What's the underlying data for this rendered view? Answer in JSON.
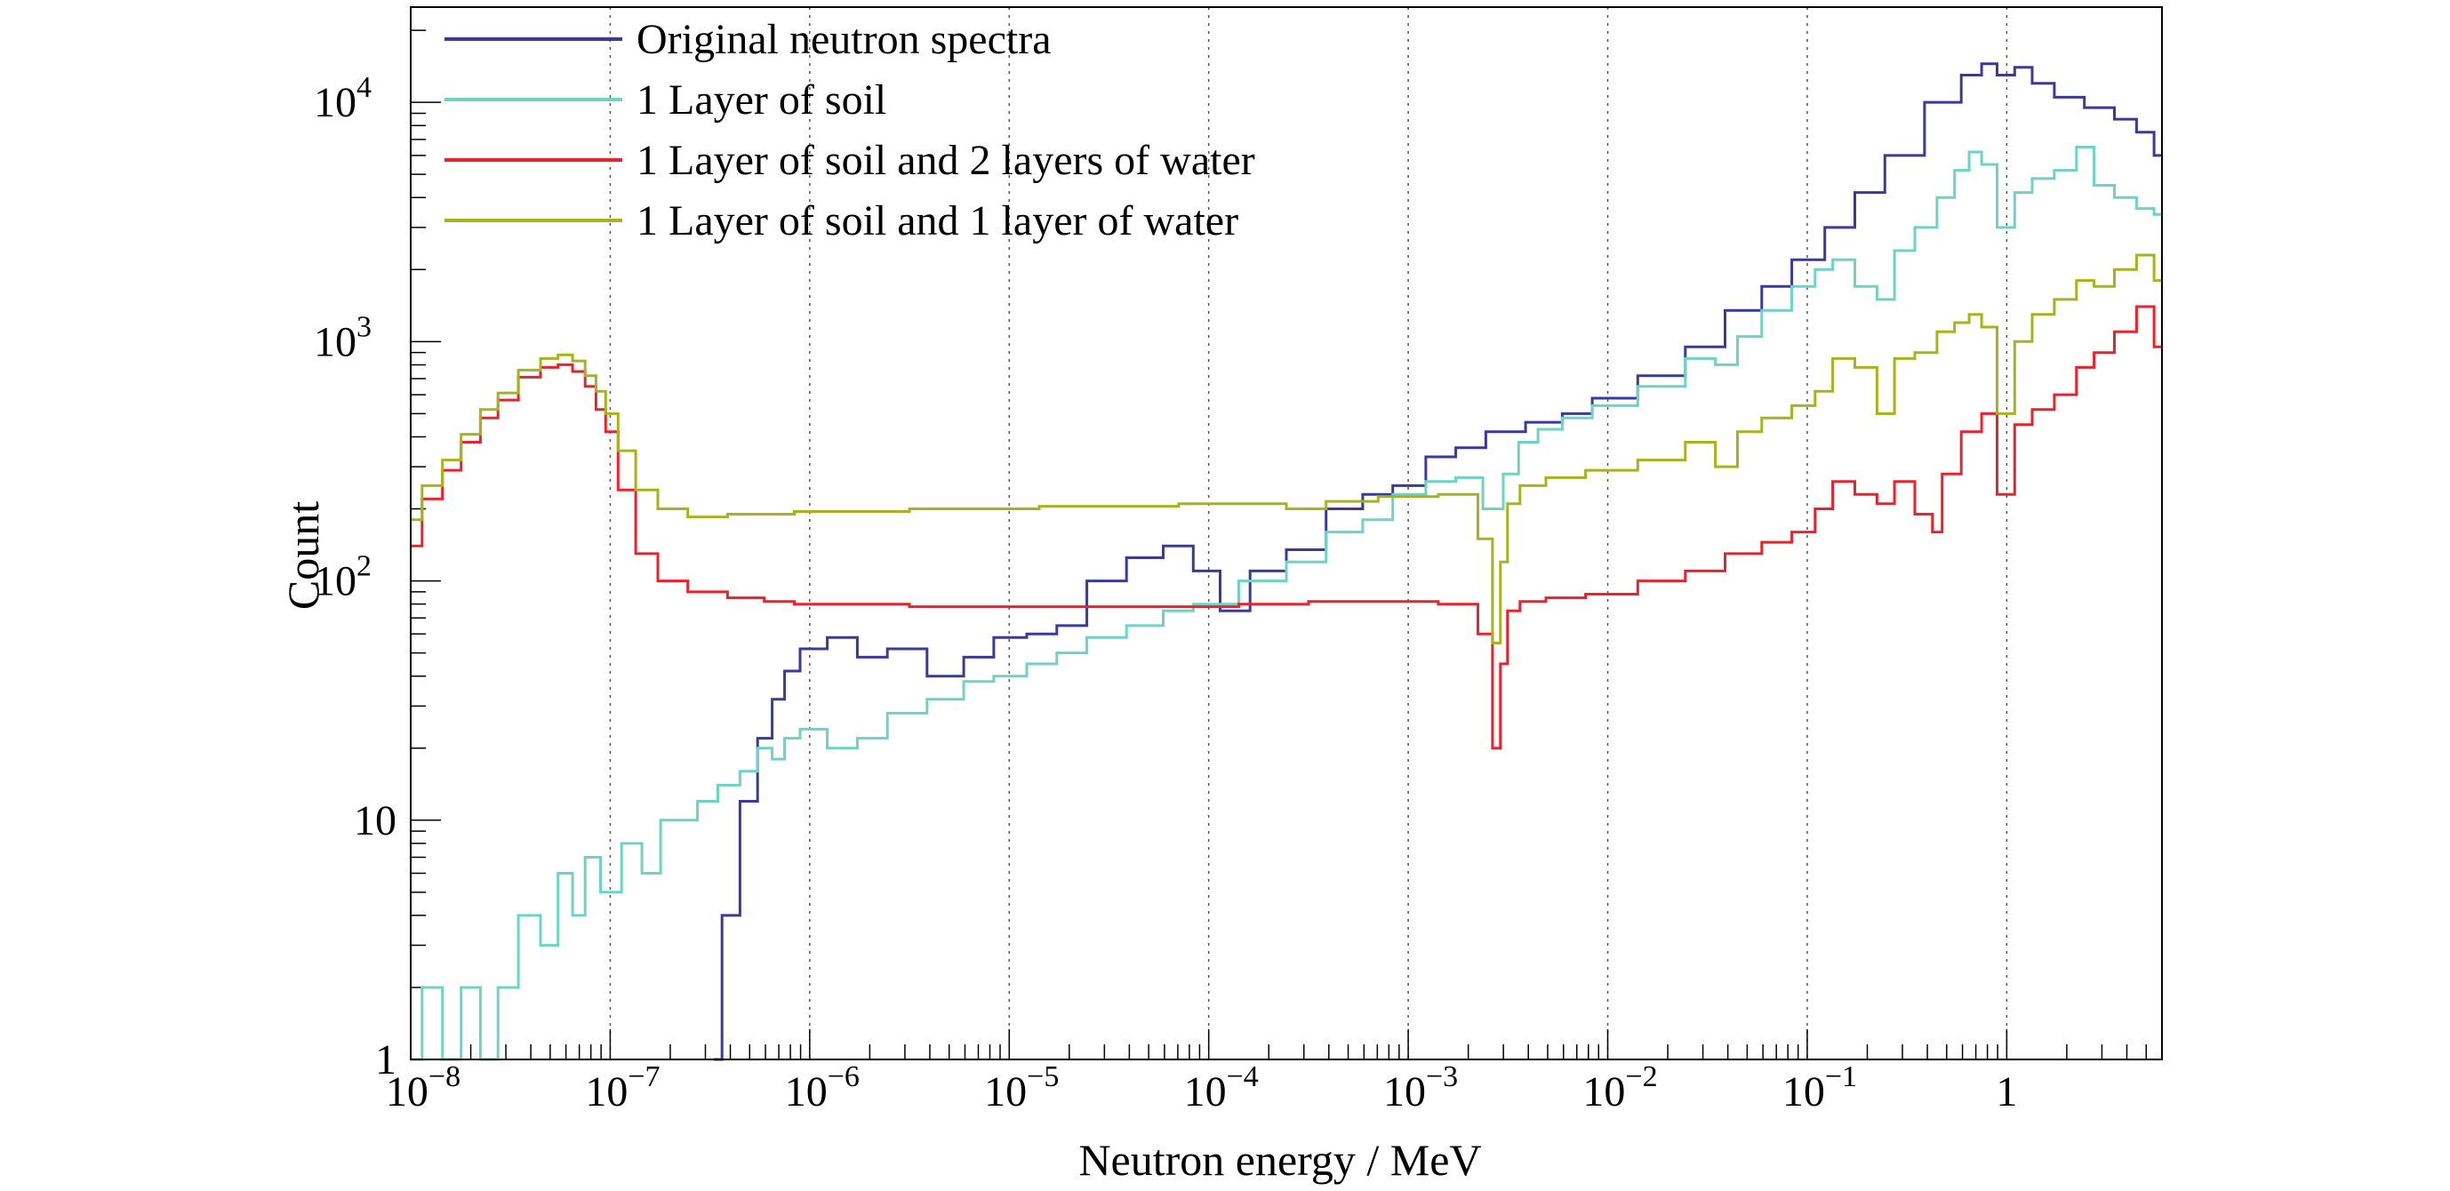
{
  "chart_data": {
    "type": "line",
    "title": "",
    "xlabel": "Neutron energy / MeV",
    "ylabel": "Count",
    "x_scale": "log",
    "y_scale": "log",
    "xlim": [
      1e-08,
      6
    ],
    "ylim": [
      1,
      25000
    ],
    "grid": "vertical dotted at decades",
    "legend_position": "top-left",
    "x_ticks": [
      {
        "value": 1e-08,
        "base": "10",
        "exp": "−8"
      },
      {
        "value": 1e-07,
        "base": "10",
        "exp": "−7"
      },
      {
        "value": 1e-06,
        "base": "10",
        "exp": "−6"
      },
      {
        "value": 1e-05,
        "base": "10",
        "exp": "−5"
      },
      {
        "value": 0.0001,
        "base": "10",
        "exp": "−4"
      },
      {
        "value": 0.001,
        "base": "10",
        "exp": "−3"
      },
      {
        "value": 0.01,
        "base": "10",
        "exp": "−2"
      },
      {
        "value": 0.1,
        "base": "10",
        "exp": "−1"
      },
      {
        "value": 1,
        "base": "1",
        "exp": ""
      }
    ],
    "y_ticks": [
      {
        "value": 1,
        "base": "1",
        "exp": ""
      },
      {
        "value": 10,
        "base": "10",
        "exp": ""
      },
      {
        "value": 100,
        "base": "10",
        "exp": "2"
      },
      {
        "value": 1000,
        "base": "10",
        "exp": "3"
      },
      {
        "value": 10000,
        "base": "10",
        "exp": "4"
      }
    ],
    "series": [
      {
        "name": "Original neutron spectra",
        "color": "#3a3a9a",
        "points": [
          [
            3.3e-07,
            1
          ],
          [
            4e-07,
            4
          ],
          [
            5e-07,
            12
          ],
          [
            6e-07,
            22
          ],
          [
            7e-07,
            32
          ],
          [
            8e-07,
            42
          ],
          [
            1e-06,
            52
          ],
          [
            1.5e-06,
            58
          ],
          [
            2e-06,
            48
          ],
          [
            3e-06,
            52
          ],
          [
            5e-06,
            40
          ],
          [
            7e-06,
            48
          ],
          [
            1e-05,
            58
          ],
          [
            1.5e-05,
            60
          ],
          [
            2e-05,
            65
          ],
          [
            3e-05,
            100
          ],
          [
            5e-05,
            125
          ],
          [
            7e-05,
            140
          ],
          [
            0.0001,
            110
          ],
          [
            0.00013,
            75
          ],
          [
            0.0002,
            110
          ],
          [
            0.0003,
            135
          ],
          [
            0.0005,
            200
          ],
          [
            0.0007,
            230
          ],
          [
            0.001,
            250
          ],
          [
            0.0015,
            330
          ],
          [
            0.002,
            360
          ],
          [
            0.003,
            420
          ],
          [
            0.005,
            460
          ],
          [
            0.007,
            500
          ],
          [
            0.01,
            580
          ],
          [
            0.02,
            720
          ],
          [
            0.03,
            950
          ],
          [
            0.05,
            1350
          ],
          [
            0.07,
            1700
          ],
          [
            0.1,
            2200
          ],
          [
            0.15,
            3000
          ],
          [
            0.2,
            4200
          ],
          [
            0.3,
            6000
          ],
          [
            0.5,
            10000
          ],
          [
            0.7,
            13000
          ],
          [
            0.8,
            14500
          ],
          [
            1,
            13000
          ],
          [
            1.2,
            14000
          ],
          [
            1.5,
            12000
          ],
          [
            2,
            10500
          ],
          [
            3,
            9500
          ],
          [
            4,
            8500
          ],
          [
            5,
            7500
          ],
          [
            6,
            6000
          ]
        ]
      },
      {
        "name": "1 Layer of soil",
        "color": "#6fd3c3",
        "points": [
          [
            1e-08,
            1
          ],
          [
            1.3e-08,
            2
          ],
          [
            1.6e-08,
            1
          ],
          [
            2e-08,
            2
          ],
          [
            2.5e-08,
            1
          ],
          [
            3e-08,
            2
          ],
          [
            4e-08,
            4
          ],
          [
            5e-08,
            3
          ],
          [
            6e-08,
            6
          ],
          [
            7e-08,
            4
          ],
          [
            8e-08,
            7
          ],
          [
            1e-07,
            5
          ],
          [
            1.3e-07,
            8
          ],
          [
            1.6e-07,
            6
          ],
          [
            2e-07,
            10
          ],
          [
            2.5e-07,
            10
          ],
          [
            3e-07,
            12
          ],
          [
            4e-07,
            14
          ],
          [
            5e-07,
            16
          ],
          [
            6e-07,
            20
          ],
          [
            7e-07,
            18
          ],
          [
            8e-07,
            22
          ],
          [
            1e-06,
            24
          ],
          [
            1.5e-06,
            20
          ],
          [
            2e-06,
            22
          ],
          [
            3e-06,
            28
          ],
          [
            5e-06,
            32
          ],
          [
            7e-06,
            38
          ],
          [
            1e-05,
            40
          ],
          [
            1.5e-05,
            45
          ],
          [
            2e-05,
            50
          ],
          [
            3e-05,
            58
          ],
          [
            5e-05,
            65
          ],
          [
            7e-05,
            75
          ],
          [
            0.0001,
            80
          ],
          [
            0.0002,
            100
          ],
          [
            0.0003,
            120
          ],
          [
            0.0005,
            160
          ],
          [
            0.0007,
            180
          ],
          [
            0.001,
            230
          ],
          [
            0.0015,
            260
          ],
          [
            0.002,
            270
          ],
          [
            0.0028,
            200
          ],
          [
            0.0032,
            280
          ],
          [
            0.004,
            380
          ],
          [
            0.005,
            430
          ],
          [
            0.007,
            480
          ],
          [
            0.01,
            540
          ],
          [
            0.02,
            650
          ],
          [
            0.03,
            850
          ],
          [
            0.04,
            800
          ],
          [
            0.05,
            1050
          ],
          [
            0.07,
            1350
          ],
          [
            0.1,
            1700
          ],
          [
            0.12,
            2000
          ],
          [
            0.15,
            2200
          ],
          [
            0.2,
            1700
          ],
          [
            0.25,
            1500
          ],
          [
            0.3,
            2400
          ],
          [
            0.4,
            3000
          ],
          [
            0.5,
            4000
          ],
          [
            0.6,
            5200
          ],
          [
            0.7,
            6200
          ],
          [
            0.8,
            5500
          ],
          [
            1,
            3000
          ],
          [
            1.2,
            4200
          ],
          [
            1.5,
            4800
          ],
          [
            2,
            5200
          ],
          [
            2.5,
            6500
          ],
          [
            3,
            4500
          ],
          [
            4,
            4000
          ],
          [
            5,
            3600
          ],
          [
            6,
            3400
          ]
        ]
      },
      {
        "name": "1 Layer of soil and 2 layers of water",
        "color": "#e8232e",
        "points": [
          [
            1e-08,
            140
          ],
          [
            1.3e-08,
            220
          ],
          [
            1.6e-08,
            290
          ],
          [
            2e-08,
            380
          ],
          [
            2.5e-08,
            480
          ],
          [
            3e-08,
            570
          ],
          [
            4e-08,
            710
          ],
          [
            5e-08,
            780
          ],
          [
            6e-08,
            800
          ],
          [
            7e-08,
            750
          ],
          [
            8e-08,
            650
          ],
          [
            9e-08,
            520
          ],
          [
            1e-07,
            420
          ],
          [
            1.2e-07,
            240
          ],
          [
            1.5e-07,
            130
          ],
          [
            2e-07,
            100
          ],
          [
            3e-07,
            90
          ],
          [
            5e-07,
            85
          ],
          [
            7e-07,
            82
          ],
          [
            1e-06,
            80
          ],
          [
            2e-06,
            80
          ],
          [
            5e-06,
            78
          ],
          [
            1e-05,
            78
          ],
          [
            2e-05,
            78
          ],
          [
            5e-05,
            78
          ],
          [
            0.0001,
            78
          ],
          [
            0.0002,
            80
          ],
          [
            0.0005,
            82
          ],
          [
            0.001,
            82
          ],
          [
            0.002,
            80
          ],
          [
            0.0025,
            60
          ],
          [
            0.0028,
            20
          ],
          [
            0.003,
            45
          ],
          [
            0.0033,
            75
          ],
          [
            0.004,
            82
          ],
          [
            0.006,
            85
          ],
          [
            0.01,
            88
          ],
          [
            0.02,
            100
          ],
          [
            0.03,
            110
          ],
          [
            0.05,
            130
          ],
          [
            0.07,
            145
          ],
          [
            0.1,
            160
          ],
          [
            0.12,
            200
          ],
          [
            0.15,
            260
          ],
          [
            0.2,
            230
          ],
          [
            0.25,
            210
          ],
          [
            0.3,
            260
          ],
          [
            0.4,
            190
          ],
          [
            0.45,
            160
          ],
          [
            0.5,
            280
          ],
          [
            0.7,
            420
          ],
          [
            0.8,
            500
          ],
          [
            1,
            230
          ],
          [
            1.2,
            450
          ],
          [
            1.5,
            520
          ],
          [
            2,
            600
          ],
          [
            2.5,
            780
          ],
          [
            3,
            900
          ],
          [
            4,
            1100
          ],
          [
            5,
            1400
          ],
          [
            6,
            950
          ]
        ]
      },
      {
        "name": "1 Layer of soil and 1 layer of water",
        "color": "#a6b41c",
        "points": [
          [
            1e-08,
            180
          ],
          [
            1.3e-08,
            250
          ],
          [
            1.6e-08,
            320
          ],
          [
            2e-08,
            410
          ],
          [
            2.5e-08,
            520
          ],
          [
            3e-08,
            610
          ],
          [
            4e-08,
            760
          ],
          [
            5e-08,
            850
          ],
          [
            6e-08,
            880
          ],
          [
            7e-08,
            830
          ],
          [
            8e-08,
            720
          ],
          [
            9e-08,
            620
          ],
          [
            1e-07,
            500
          ],
          [
            1.2e-07,
            350
          ],
          [
            1.5e-07,
            240
          ],
          [
            2e-07,
            200
          ],
          [
            3e-07,
            185
          ],
          [
            5e-07,
            190
          ],
          [
            7e-07,
            190
          ],
          [
            1e-06,
            195
          ],
          [
            2e-06,
            195
          ],
          [
            5e-06,
            200
          ],
          [
            1e-05,
            200
          ],
          [
            2e-05,
            205
          ],
          [
            5e-05,
            205
          ],
          [
            0.0001,
            210
          ],
          [
            0.0002,
            210
          ],
          [
            0.0003,
            200
          ],
          [
            0.0005,
            215
          ],
          [
            0.001,
            225
          ],
          [
            0.002,
            230
          ],
          [
            0.0025,
            150
          ],
          [
            0.0028,
            55
          ],
          [
            0.003,
            120
          ],
          [
            0.0033,
            210
          ],
          [
            0.004,
            250
          ],
          [
            0.006,
            270
          ],
          [
            0.01,
            290
          ],
          [
            0.02,
            320
          ],
          [
            0.03,
            380
          ],
          [
            0.04,
            300
          ],
          [
            0.05,
            420
          ],
          [
            0.07,
            480
          ],
          [
            0.1,
            540
          ],
          [
            0.12,
            620
          ],
          [
            0.15,
            850
          ],
          [
            0.2,
            780
          ],
          [
            0.25,
            500
          ],
          [
            0.3,
            850
          ],
          [
            0.4,
            900
          ],
          [
            0.5,
            1100
          ],
          [
            0.6,
            1200
          ],
          [
            0.7,
            1300
          ],
          [
            0.8,
            1150
          ],
          [
            1,
            500
          ],
          [
            1.2,
            1000
          ],
          [
            1.5,
            1300
          ],
          [
            2,
            1500
          ],
          [
            2.5,
            1800
          ],
          [
            3,
            1700
          ],
          [
            4,
            2000
          ],
          [
            5,
            2300
          ],
          [
            6,
            1800
          ]
        ]
      }
    ]
  }
}
